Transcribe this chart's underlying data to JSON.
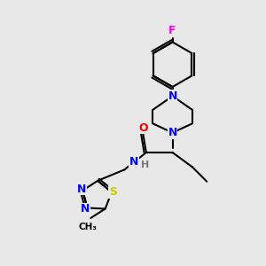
{
  "background_color": "#e8e8e8",
  "bond_color": "#000000",
  "atom_colors": {
    "F": "#ff00ee",
    "N": "#0000ff",
    "O": "#ff0000",
    "S": "#cccc00",
    "C": "#000000",
    "H": "#777777"
  },
  "figsize": [
    3.0,
    3.0
  ],
  "dpi": 100
}
